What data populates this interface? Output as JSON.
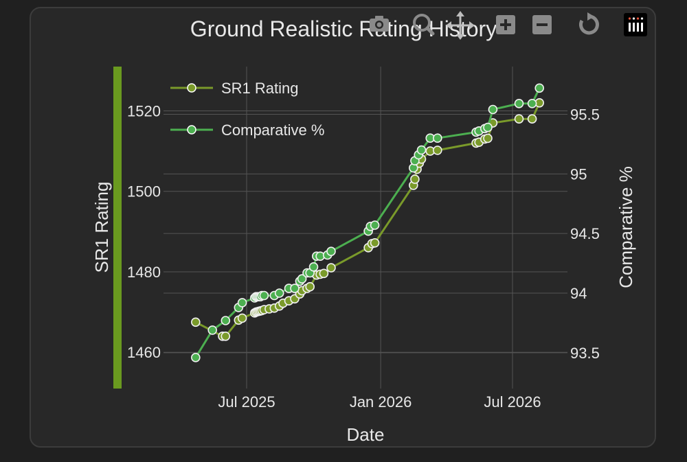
{
  "chart_data": {
    "type": "line",
    "title": "Ground Realistic Rating History",
    "xlabel": "Date",
    "ylabel_left": "SR1 Rating",
    "ylabel_right": "Comparative %",
    "x_ticks": [
      "Jul 2025",
      "Jan 2026",
      "Jul 2026"
    ],
    "y_left_ticks": [
      1460,
      1480,
      1500,
      1520
    ],
    "y_right_ticks": [
      "93.5",
      "94",
      "94.5",
      "95",
      "95.5"
    ],
    "y_left_range": [
      1451,
      1531
    ],
    "y_right_range": [
      93.2,
      95.9
    ],
    "legend": "top-left",
    "series": [
      {
        "name": "SR1 Rating",
        "axis": "left",
        "color": "#7a9a2a",
        "points": [
          [
            "2025-04-22",
            1467.5
          ],
          [
            "2025-05-29",
            1464.0
          ],
          [
            "2025-06-02",
            1464.0
          ],
          [
            "2025-06-20",
            1468.0
          ],
          [
            "2025-06-25",
            1468.5
          ],
          [
            "2025-07-12",
            1469.8
          ],
          [
            "2025-07-14",
            1470.0
          ],
          [
            "2025-07-16",
            1470.1
          ],
          [
            "2025-07-18",
            1470.2
          ],
          [
            "2025-07-20",
            1470.3
          ],
          [
            "2025-07-22",
            1470.4
          ],
          [
            "2025-07-25",
            1470.6
          ],
          [
            "2025-08-01",
            1470.8
          ],
          [
            "2025-08-08",
            1471.0
          ],
          [
            "2025-08-15",
            1471.5
          ],
          [
            "2025-08-20",
            1472.2
          ],
          [
            "2025-08-28",
            1472.8
          ],
          [
            "2025-09-05",
            1473.3
          ],
          [
            "2025-09-12",
            1474.5
          ],
          [
            "2025-09-15",
            1475.3
          ],
          [
            "2025-09-22",
            1475.9
          ],
          [
            "2025-09-26",
            1476.3
          ],
          [
            "2025-10-05",
            1479.2
          ],
          [
            "2025-10-10",
            1479.4
          ],
          [
            "2025-10-15",
            1479.6
          ],
          [
            "2025-10-25",
            1481.0
          ],
          [
            "2025-12-15",
            1486.0
          ],
          [
            "2025-12-20",
            1487.0
          ],
          [
            "2025-12-24",
            1487.2
          ],
          [
            "2026-02-15",
            1501.5
          ],
          [
            "2026-02-17",
            1503.0
          ],
          [
            "2026-02-20",
            1505.5
          ],
          [
            "2026-02-23",
            1507.0
          ],
          [
            "2026-02-26",
            1508.0
          ],
          [
            "2026-03-10",
            1510.0
          ],
          [
            "2026-03-20",
            1510.2
          ],
          [
            "2026-05-12",
            1512.0
          ],
          [
            "2026-05-16",
            1512.2
          ],
          [
            "2026-05-24",
            1513.0
          ],
          [
            "2026-05-28",
            1513.2
          ],
          [
            "2026-06-04",
            1517.0
          ],
          [
            "2026-07-10",
            1518.0
          ],
          [
            "2026-07-28",
            1518.0
          ],
          [
            "2026-08-07",
            1522.0
          ]
        ]
      },
      {
        "name": "Comparative %",
        "axis": "right",
        "color": "#4caf50",
        "points": [
          [
            "2025-04-22",
            93.46
          ],
          [
            "2025-05-15",
            93.69
          ],
          [
            "2025-06-02",
            93.77
          ],
          [
            "2025-06-20",
            93.88
          ],
          [
            "2025-06-25",
            93.92
          ],
          [
            "2025-07-12",
            93.96
          ],
          [
            "2025-07-14",
            93.97
          ],
          [
            "2025-07-16",
            93.97
          ],
          [
            "2025-07-18",
            93.97
          ],
          [
            "2025-07-20",
            93.97
          ],
          [
            "2025-07-22",
            93.98
          ],
          [
            "2025-07-25",
            93.98
          ],
          [
            "2025-08-08",
            93.98
          ],
          [
            "2025-08-15",
            94.0
          ],
          [
            "2025-08-28",
            94.04
          ],
          [
            "2025-09-05",
            94.04
          ],
          [
            "2025-09-12",
            94.1
          ],
          [
            "2025-09-15",
            94.12
          ],
          [
            "2025-09-22",
            94.17
          ],
          [
            "2025-09-26",
            94.17
          ],
          [
            "2025-10-01",
            94.22
          ],
          [
            "2025-10-05",
            94.31
          ],
          [
            "2025-10-10",
            94.31
          ],
          [
            "2025-10-20",
            94.32
          ],
          [
            "2025-10-25",
            94.35
          ],
          [
            "2025-12-15",
            94.52
          ],
          [
            "2025-12-18",
            94.56
          ],
          [
            "2025-12-24",
            94.57
          ],
          [
            "2026-02-15",
            95.05
          ],
          [
            "2026-02-17",
            95.11
          ],
          [
            "2026-02-22",
            95.16
          ],
          [
            "2026-02-26",
            95.2
          ],
          [
            "2026-03-10",
            95.3
          ],
          [
            "2026-03-20",
            95.3
          ],
          [
            "2026-05-12",
            95.35
          ],
          [
            "2026-05-16",
            95.36
          ],
          [
            "2026-05-24",
            95.38
          ],
          [
            "2026-05-28",
            95.39
          ],
          [
            "2026-06-04",
            95.54
          ],
          [
            "2026-07-10",
            95.59
          ],
          [
            "2026-07-28",
            95.59
          ],
          [
            "2026-08-07",
            95.72
          ]
        ]
      }
    ]
  }
}
